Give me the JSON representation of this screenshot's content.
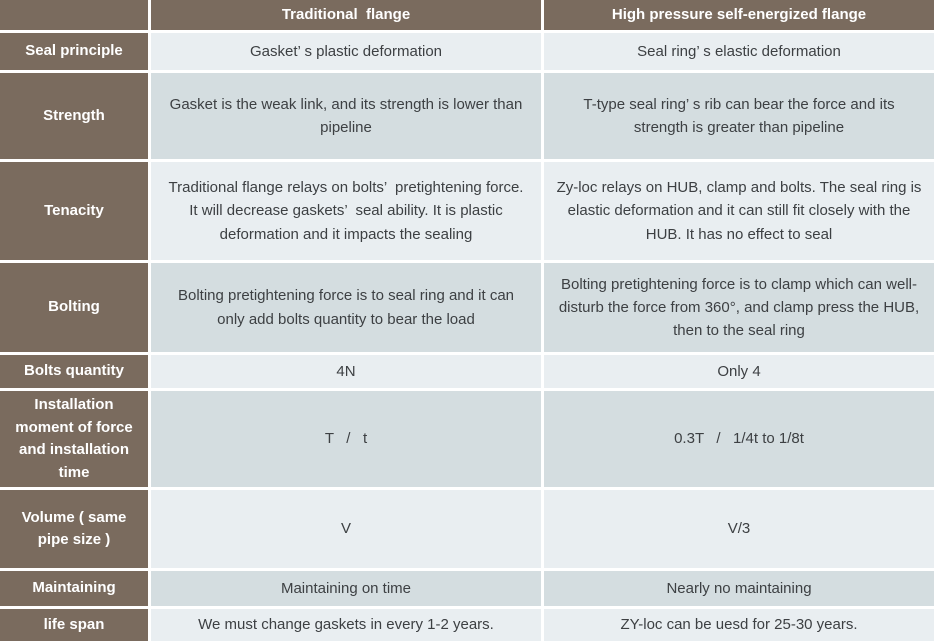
{
  "colors": {
    "header_bg": "#7a6b5e",
    "row_light": "#e9eef1",
    "row_dark": "#d4dde0",
    "gap_color": "#ffffff",
    "text_dark": "#3d4043",
    "text_light": "#ffffff"
  },
  "table": {
    "columns": [
      "",
      "Traditional  flange",
      "High pressure self-energized flange"
    ],
    "rows": [
      {
        "label": "Seal principle",
        "traditional": "Gasket’ s plastic deformation",
        "high_pressure": "Seal ring’ s elastic deformation"
      },
      {
        "label": "Strength",
        "traditional": "Gasket is the weak link, and its strength is lower than pipeline",
        "high_pressure": "T-type seal ring’ s rib can bear the force and its strength is greater than pipeline"
      },
      {
        "label": "Tenacity",
        "traditional": "Traditional flange relays on bolts’  pretightening force. It will decrease gaskets’  seal ability. It is plastic deformation and it impacts the sealing",
        "high_pressure": "Zy-loc relays on HUB, clamp and bolts. The seal ring is elastic deformation and it can still fit closely with the HUB. It has no effect to seal"
      },
      {
        "label": "Bolting",
        "traditional": "Bolting pretightening force is to seal ring and it can only add bolts quantity to bear the load",
        "high_pressure": "Bolting pretightening force is to clamp which can well-disturb the force from 360°, and clamp press the HUB, then to the seal ring"
      },
      {
        "label": "Bolts quantity",
        "traditional": "4N",
        "high_pressure": "Only 4"
      },
      {
        "label": "Installation moment of force and installation time",
        "traditional": "T   /   t",
        "high_pressure": "0.3T   /   1/4t to 1/8t"
      },
      {
        "label": "Volume ( same pipe size )",
        "traditional": "V",
        "high_pressure": "V/3"
      },
      {
        "label": "Maintaining",
        "traditional": "Maintaining on time",
        "high_pressure": "Nearly no maintaining"
      },
      {
        "label": "life span",
        "traditional": "We must change gaskets in every 1-2 years.",
        "high_pressure": "ZY-loc can be uesd for 25-30 years."
      }
    ]
  }
}
